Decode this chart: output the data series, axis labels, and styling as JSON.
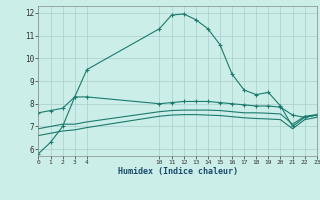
{
  "xlabel": "Humidex (Indice chaleur)",
  "bg_color": "#cceee8",
  "grid_color": "#aacccc",
  "line_color": "#1a7a6e",
  "xlim": [
    0,
    23
  ],
  "ylim": [
    5.7,
    12.3
  ],
  "yticks": [
    6,
    7,
    8,
    9,
    10,
    11,
    12
  ],
  "xticks": [
    0,
    1,
    2,
    3,
    4,
    10,
    11,
    12,
    13,
    14,
    15,
    16,
    17,
    18,
    19,
    20,
    21,
    22,
    23
  ],
  "line1_x": [
    0,
    1,
    2,
    3,
    4,
    10,
    11,
    12,
    13,
    14,
    15,
    16,
    17,
    18,
    19,
    20,
    21,
    22,
    23
  ],
  "line1_y": [
    5.8,
    6.3,
    7.0,
    8.3,
    9.5,
    11.3,
    11.9,
    11.95,
    11.7,
    11.3,
    10.6,
    9.3,
    8.6,
    8.4,
    8.5,
    7.9,
    7.0,
    7.4,
    7.5
  ],
  "line2_x": [
    0,
    1,
    2,
    3,
    4,
    10,
    11,
    12,
    13,
    14,
    15,
    16,
    17,
    18,
    19,
    20,
    21,
    22,
    23
  ],
  "line2_y": [
    7.6,
    7.7,
    7.8,
    8.3,
    8.3,
    8.0,
    8.05,
    8.1,
    8.1,
    8.1,
    8.05,
    8.0,
    7.95,
    7.9,
    7.9,
    7.85,
    7.5,
    7.4,
    7.5
  ],
  "line3_x": [
    0,
    1,
    2,
    3,
    4,
    10,
    11,
    12,
    13,
    14,
    15,
    16,
    17,
    18,
    19,
    20,
    21,
    22,
    23
  ],
  "line3_y": [
    6.9,
    7.0,
    7.1,
    7.1,
    7.2,
    7.65,
    7.7,
    7.72,
    7.72,
    7.72,
    7.7,
    7.65,
    7.6,
    7.6,
    7.58,
    7.55,
    7.1,
    7.45,
    7.52
  ],
  "line4_x": [
    0,
    1,
    2,
    3,
    4,
    10,
    11,
    12,
    13,
    14,
    15,
    16,
    17,
    18,
    19,
    20,
    21,
    22,
    23
  ],
  "line4_y": [
    6.6,
    6.7,
    6.8,
    6.85,
    6.95,
    7.45,
    7.5,
    7.52,
    7.52,
    7.5,
    7.48,
    7.43,
    7.38,
    7.35,
    7.33,
    7.3,
    6.9,
    7.3,
    7.4
  ]
}
